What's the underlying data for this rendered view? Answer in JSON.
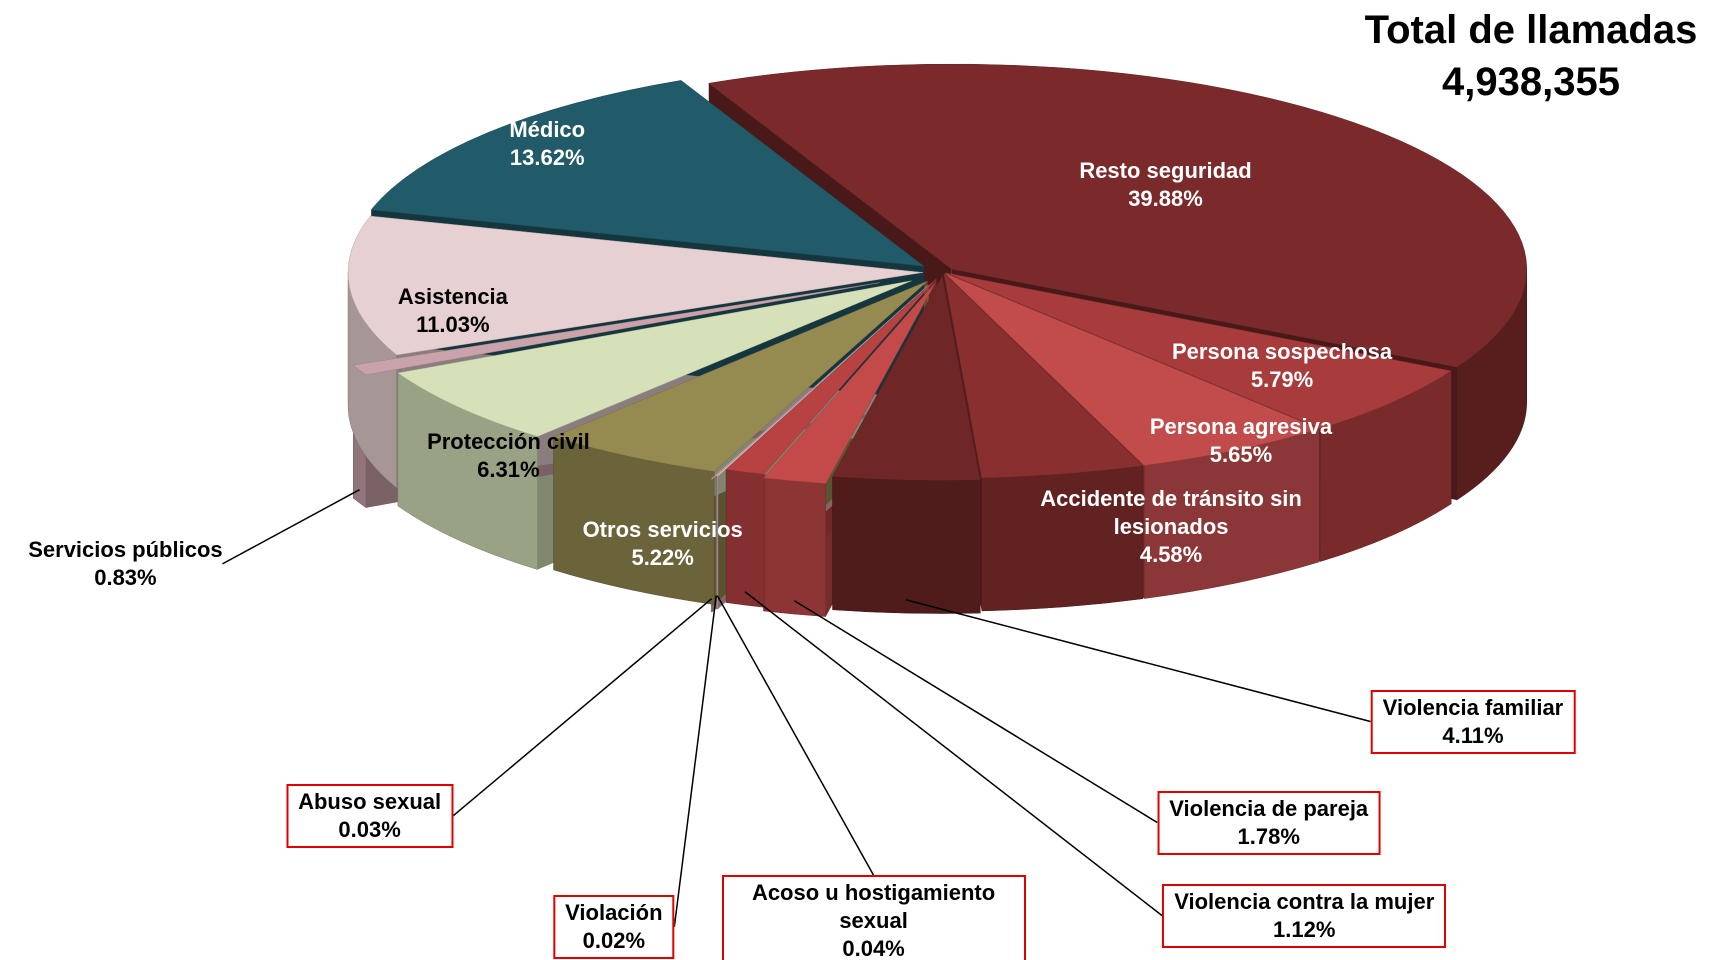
{
  "chart_data": {
    "type": "pie3d",
    "title": "Total de llamadas",
    "subtitle": "4,938,355",
    "categories": [
      "Resto seguridad",
      "Persona sospechosa",
      "Persona agresiva",
      "Accidente de tránsito sin lesionados",
      "Violencia familiar",
      "Violencia de pareja",
      "Violencia contra la mujer",
      "Acoso u hostigamiento sexual",
      "Violación",
      "Abuso sexual",
      "Otros servicios",
      "Protección civil",
      "Servicios públicos",
      "Asistencia",
      "Médico"
    ],
    "values": [
      39.88,
      5.79,
      5.65,
      4.58,
      4.11,
      1.78,
      1.12,
      0.04,
      0.02,
      0.03,
      5.22,
      6.31,
      0.83,
      11.03,
      13.62
    ],
    "value_labels": [
      "39.88%",
      "5.79%",
      "5.65%",
      "4.58%",
      "4.11%",
      "1.78%",
      "1.12%",
      "0.04%",
      "0.02%",
      "0.03%",
      "5.22%",
      "6.31%",
      "0.83%",
      "11.03%",
      "13.62%"
    ],
    "colors": [
      "#7a2a2a",
      "#a83c3c",
      "#c24c4c",
      "#8a2f2f",
      "#6e2626",
      "#c44a4a",
      "#b84242",
      "#e8c9c9",
      "#dcb4b4",
      "#d6a9ac",
      "#958a50",
      "#d6e1b9",
      "#c9a2aa",
      "#e6d0d1",
      "#215a68"
    ]
  }
}
